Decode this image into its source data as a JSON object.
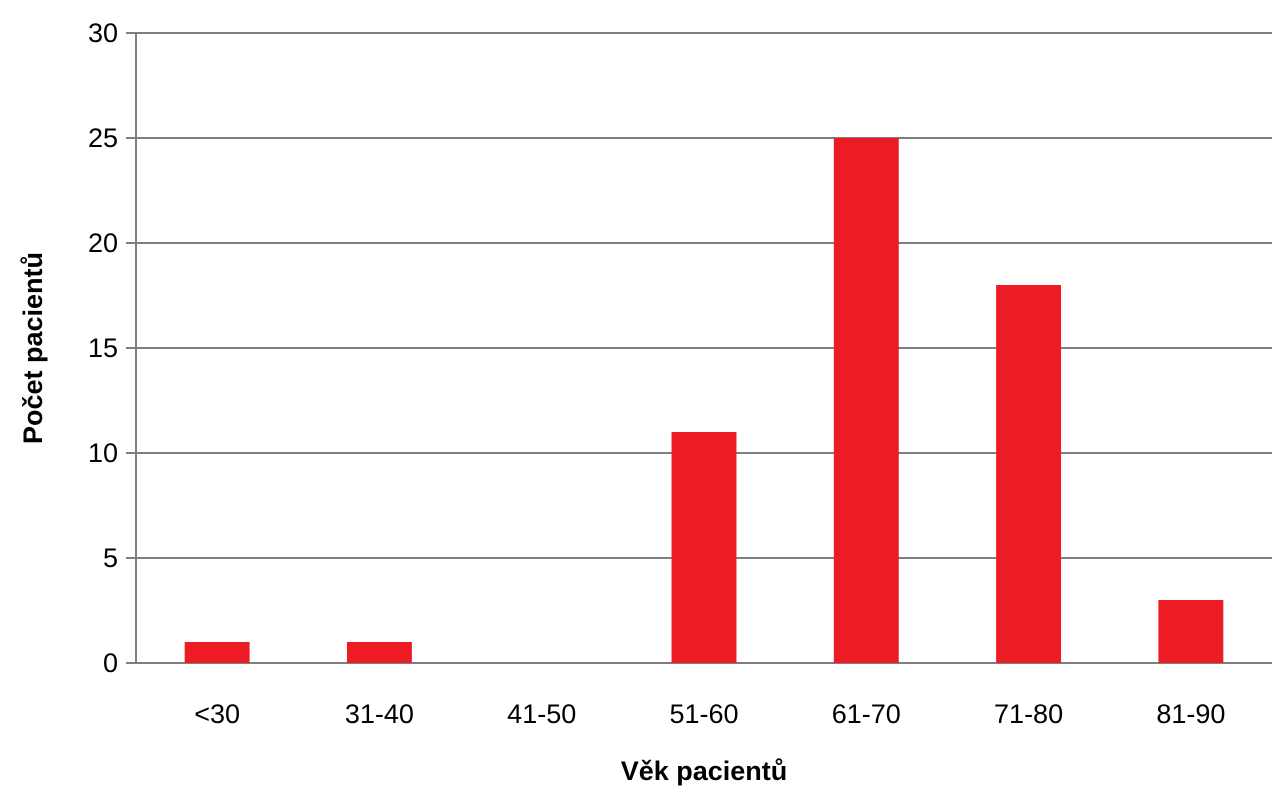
{
  "chart_data": {
    "type": "bar",
    "categories": [
      "<30",
      "31-40",
      "41-50",
      "51-60",
      "61-70",
      "71-80",
      "81-90"
    ],
    "values": [
      1,
      1,
      0,
      11,
      25,
      18,
      3
    ],
    "xlabel": "Věk pacientů",
    "ylabel": "Počet pacientů",
    "ylim": [
      0,
      30
    ],
    "yticks": [
      0,
      5,
      10,
      15,
      20,
      25,
      30
    ],
    "grid": true,
    "bar_color": "#ed1c24",
    "legend": "none"
  }
}
